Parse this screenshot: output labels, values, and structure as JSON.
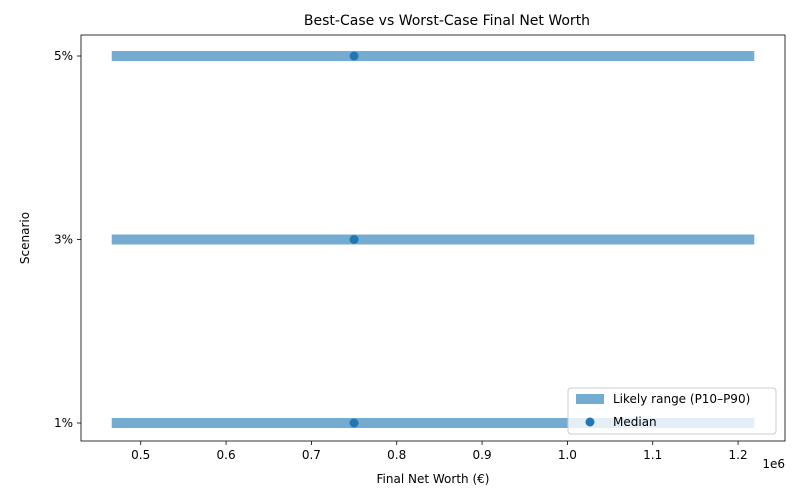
{
  "chart_data": {
    "type": "range",
    "title": "Best-Case vs Worst-Case Final Net Worth",
    "xlabel": "Final Net Worth (€)",
    "ylabel": "Scenario",
    "x_offset_label": "1e6",
    "xlim": [
      430000,
      1255000
    ],
    "x_ticks": [
      500000,
      600000,
      700000,
      800000,
      900000,
      1000000,
      1100000,
      1200000
    ],
    "x_tick_labels": [
      "0.5",
      "0.6",
      "0.7",
      "0.8",
      "0.9",
      "1.0",
      "1.1",
      "1.2"
    ],
    "categories": [
      "1%",
      "3%",
      "5%"
    ],
    "series": [
      {
        "name": "Likely range (P10–P90)",
        "kind": "range",
        "color": "#74acd1",
        "values": [
          [
            466000,
            1219000
          ],
          [
            466000,
            1219000
          ],
          [
            466000,
            1219000
          ]
        ]
      },
      {
        "name": "Median",
        "kind": "point",
        "color": "#1f77b4",
        "values": [
          750000,
          750000,
          750000
        ]
      }
    ],
    "legend_position": "lower-right",
    "grid": false
  }
}
